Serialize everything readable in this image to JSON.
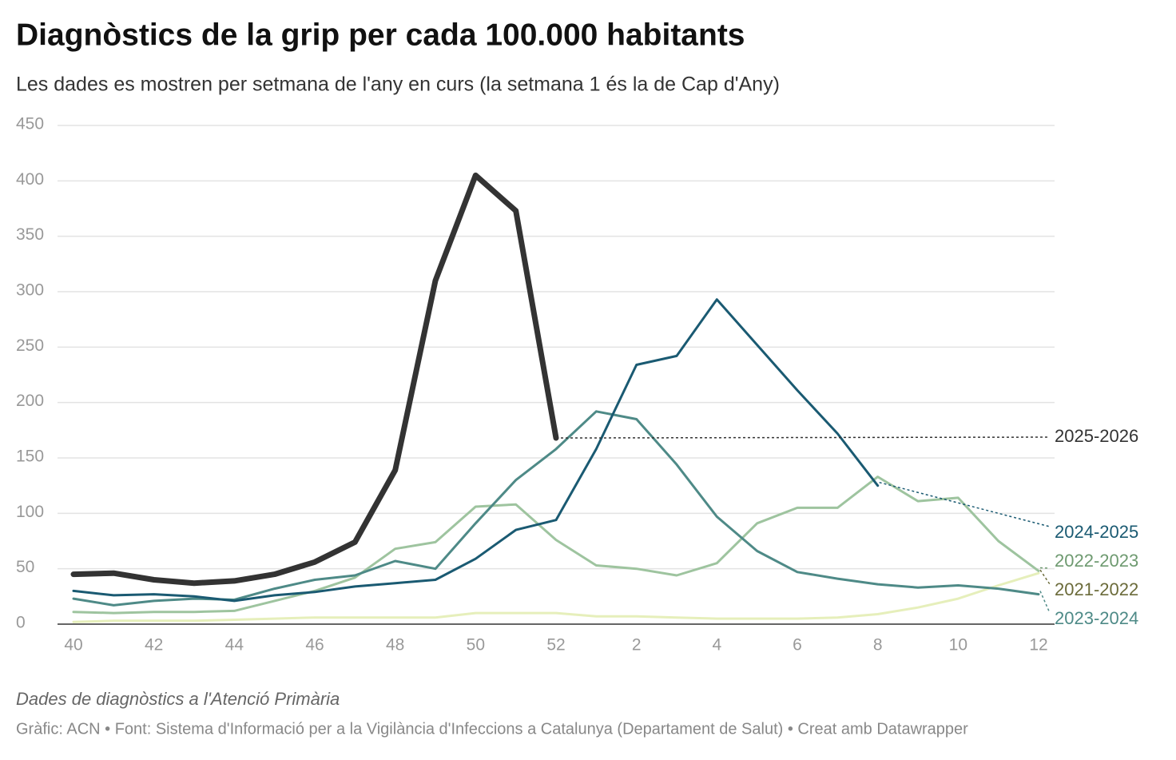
{
  "chart_data": {
    "type": "line",
    "title": "Diagnòstics de la grip per cada 100.000 habitants",
    "subtitle": "Les dades es mostren per setmana de l'any en curs (la setmana 1 és la de Cap d'Any)",
    "note": "Dades de diagnòstics a l'Atenció Primària",
    "source": "Gràfic: ACN • Font: Sistema d'Informació per a la Vigilància d'Infeccions a Catalunya (Departament de Salut) • Creat amb Datawrapper",
    "categories": [
      40,
      null,
      42,
      null,
      44,
      null,
      46,
      null,
      48,
      null,
      50,
      null,
      52,
      null,
      2,
      null,
      4,
      null,
      6,
      null,
      8,
      null,
      10,
      null,
      12
    ],
    "ylim": [
      0,
      450
    ],
    "yticks": [
      0,
      50,
      100,
      150,
      200,
      250,
      300,
      350,
      400,
      450
    ],
    "grid": true,
    "series": [
      {
        "name": "2021-2022",
        "color": "#e6efbb",
        "label_color": "#6b6b3a",
        "values": [
          2,
          3,
          3,
          3,
          4,
          5,
          6,
          6,
          6,
          6,
          10,
          10,
          10,
          7,
          7,
          6,
          5,
          5,
          5,
          6,
          9,
          15,
          23,
          35,
          46
        ]
      },
      {
        "name": "2022-2023",
        "color": "#9ec49f",
        "label_color": "#6e9a70",
        "values": [
          11,
          10,
          11,
          11,
          12,
          21,
          30,
          42,
          68,
          74,
          106,
          108,
          76,
          53,
          50,
          44,
          55,
          91,
          105,
          105,
          133,
          111,
          114,
          75,
          48
        ]
      },
      {
        "name": "2023-2024",
        "color": "#4e8a87",
        "label_color": "#4e8a87",
        "values": [
          23,
          17,
          21,
          23,
          22,
          32,
          40,
          44,
          57,
          50,
          91,
          130,
          158,
          192,
          185,
          144,
          97,
          66,
          47,
          41,
          36,
          33,
          35,
          32,
          27
        ]
      },
      {
        "name": "2024-2025",
        "color": "#1a5a72",
        "label_color": "#1a5a72",
        "values": [
          30,
          26,
          27,
          25,
          21,
          26,
          29,
          34,
          37,
          40,
          59,
          85,
          94,
          158,
          234,
          242,
          293,
          252,
          211,
          172,
          125,
          null,
          null,
          null,
          null
        ]
      },
      {
        "name": "2025-2026",
        "color": "#333333",
        "label_color": "#333333",
        "values": [
          45,
          46,
          40,
          37,
          39,
          45,
          56,
          74,
          139,
          310,
          405,
          373,
          168,
          null,
          null,
          null,
          null,
          null,
          null,
          null,
          null,
          null,
          null,
          null,
          null
        ]
      }
    ]
  }
}
